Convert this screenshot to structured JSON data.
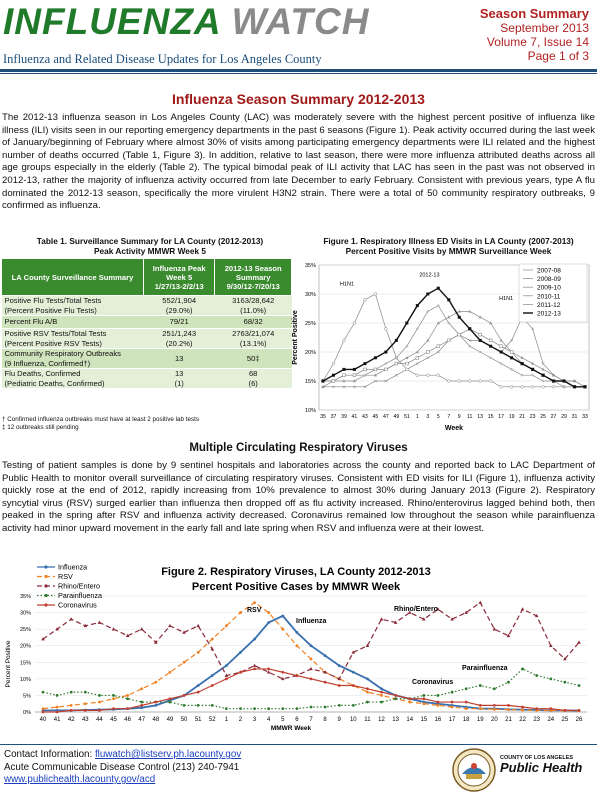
{
  "masthead": {
    "title_word1": "INFLUENZA",
    "title_word2": "WATCH",
    "subtitle": "Influenza and Related Disease Updates for Los Angeles County",
    "issue_type": "Season Summary",
    "issue_date": "September 2013",
    "issue_volume": "Volume 7, Issue 14",
    "issue_page": "Page 1 of 3"
  },
  "headline": "Influenza Season Summary 2012-2013",
  "intro_text": "The 2012-13 influenza season in Los Angeles County (LAC) was moderately severe with the highest percent positive of influenza like illness (ILI) visits seen in our reporting emergency departments in the past 6 seasons (Figure 1). Peak activity occurred during the last week of January/beginning of February where almost 30% of visits among participating emergency departments were ILI related and the highest number of deaths occurred (Table 1, Figure 3). In addition, relative to last season, there were more influenza attributed deaths across all age groups especially in the elderly (Table 2). The typical bimodal peak of ILI activity that LAC has seen in the past was not observed in 2012-13, rather the majority of influenza activity occurred from late December to early February. Consistent with previous years, type A flu dominated the 2012-13 season, specifically the more virulent H3N2 strain. There were a total of 50 community respiratory outbreaks, 9 confirmed as influenza.",
  "table1": {
    "title_l1": "Table 1. Surveillance Summary for LA County (2012-2013)",
    "title_l2": "Peak Activity MMWR Week 5",
    "headers": {
      "c1": "LA County Surveillance Summary",
      "c2a": "Influenza Peak",
      "c2b": "Week 5",
      "c2c": "1/27/13-2/2/13",
      "c3a": "2012-13 Season",
      "c3b": "Summary",
      "c3c": "9/30/12-7/20/13"
    },
    "rows": [
      {
        "l1": "Positive Flu Tests/Total Tests",
        "l2": "(Percent Positive Flu Tests)",
        "a1": "552/1,904",
        "a2": "(29.0%)",
        "b1": "3163/28,642",
        "b2": "(11.0%)"
      },
      {
        "l1": "Percent Flu A/B",
        "l2": "",
        "a1": "79/21",
        "a2": "",
        "b1": "68/32",
        "b2": ""
      },
      {
        "l1": "Positive RSV Tests/Total Tests",
        "l2": "(Percent Positive RSV Tests)",
        "a1": "251/1,243",
        "a2": "(20.2%)",
        "b1": "2763/21,074",
        "b2": "(13.1%)"
      },
      {
        "l1": "Community Respiratory Outbreaks",
        "l2": "(9 Influenza, Confirmed†)",
        "a1": "13",
        "a2": "",
        "b1": "50‡",
        "b2": ""
      },
      {
        "l1": "Flu Deaths, Confirmed",
        "l2": "(Pediatric Deaths, Confirmed)",
        "a1": "13",
        "a2": "(1)",
        "b1": "68",
        "b2": "(6)"
      }
    ],
    "footnote1": "† Confirmed influenza outbreaks must have at least 2 positive lab tests",
    "footnote2": "‡ 12 outbreaks still pending"
  },
  "chart_data": [
    {
      "type": "line",
      "title": "Figure 1. Respiratory Illness ED Visits in LA County (2007-2013)",
      "subtitle": "Percent Positive Visits by MMWR Surveillance Week",
      "xlabel": "Week",
      "ylabel": "Percent Positive",
      "x": [
        "35",
        "37",
        "39",
        "41",
        "43",
        "45",
        "47",
        "49",
        "51",
        "1",
        "3",
        "5",
        "7",
        "9",
        "11",
        "13",
        "15",
        "17",
        "19",
        "21",
        "23",
        "25",
        "27",
        "29",
        "31",
        "33"
      ],
      "ylim": [
        10,
        35
      ],
      "yticks": [
        "10%",
        "15%",
        "20%",
        "25%",
        "30%",
        "35%"
      ],
      "legend_position": "top-right",
      "annotations": [
        "H1N1",
        "2012-13",
        "H1N1"
      ],
      "series": [
        {
          "name": "2007-08",
          "color": "#888888",
          "marker": "triangle",
          "values": [
            14,
            15,
            15,
            15,
            16,
            16,
            17,
            18,
            19,
            20,
            22,
            25,
            26,
            27,
            27,
            26,
            25,
            22,
            20,
            19,
            18,
            17,
            16,
            15,
            15,
            14
          ]
        },
        {
          "name": "2008-09",
          "color": "#888888",
          "marker": "x",
          "values": [
            14,
            14,
            14,
            14,
            14,
            15,
            15,
            16,
            17,
            18,
            19,
            20,
            22,
            23,
            22,
            22,
            21,
            20,
            22,
            26,
            24,
            18,
            16,
            15,
            15,
            14
          ]
        },
        {
          "name": "2009-10",
          "color": "#888888",
          "marker": "circle",
          "values": [
            15,
            18,
            22,
            25,
            29,
            30,
            24,
            19,
            17,
            16,
            16,
            16,
            15,
            15,
            15,
            15,
            15,
            14,
            14,
            14,
            14,
            14,
            14,
            14,
            14,
            14
          ]
        },
        {
          "name": "2010-11",
          "color": "#888888",
          "marker": "diamond",
          "values": [
            15,
            15,
            16,
            16,
            16,
            17,
            18,
            19,
            21,
            24,
            27,
            28,
            25,
            23,
            21,
            20,
            19,
            18,
            17,
            16,
            16,
            15,
            15,
            14,
            14,
            14
          ]
        },
        {
          "name": "2011-12",
          "color": "#888888",
          "marker": "square-open",
          "values": [
            15,
            15,
            16,
            16,
            17,
            17,
            17,
            18,
            18,
            19,
            20,
            21,
            22,
            23,
            24,
            23,
            22,
            21,
            20,
            18,
            17,
            16,
            15,
            15,
            14,
            14
          ]
        },
        {
          "name": "2012-13",
          "color": "#111111",
          "marker": "square",
          "values": [
            15,
            16,
            17,
            17,
            18,
            19,
            20,
            22,
            25,
            28,
            30,
            31,
            29,
            26,
            24,
            22,
            21,
            20,
            19,
            18,
            17,
            16,
            15,
            15,
            14,
            14
          ]
        }
      ]
    },
    {
      "type": "line",
      "title": "Figure 2.  Respiratory Viruses, LA County 2012-2013",
      "subtitle": "Percent Positive Cases by MMWR Week",
      "xlabel": "MMWR Week",
      "ylabel": "Percent Positive",
      "x": [
        "40",
        "41",
        "42",
        "43",
        "44",
        "45",
        "46",
        "47",
        "48",
        "49",
        "50",
        "51",
        "52",
        "1",
        "2",
        "3",
        "4",
        "5",
        "6",
        "7",
        "8",
        "9",
        "10",
        "11",
        "12",
        "13",
        "14",
        "15",
        "16",
        "17",
        "18",
        "19",
        "20",
        "21",
        "22",
        "23",
        "24",
        "25",
        "26"
      ],
      "ylim": [
        0,
        35
      ],
      "yticks": [
        "0%",
        "5%",
        "10%",
        "15%",
        "20%",
        "25%",
        "30%",
        "35%"
      ],
      "legend_position": "top-left",
      "annotations": [
        "RSV",
        "Influenza",
        "Rhino/Entero",
        "Parainfluenza",
        "Coronavirus"
      ],
      "series": [
        {
          "name": "Influenza",
          "color": "#3a6fb0",
          "style": "solid",
          "values": [
            0.5,
            0.5,
            0.5,
            0.6,
            0.7,
            0.8,
            1,
            1.3,
            2,
            3.5,
            5,
            8,
            11,
            14,
            18,
            22,
            27,
            29,
            24,
            20,
            17,
            14,
            12,
            10,
            7,
            5,
            4,
            3,
            2.5,
            2,
            1.5,
            1,
            1,
            0.8,
            0.7,
            0.6,
            0.5,
            0.5,
            0.4
          ]
        },
        {
          "name": "RSV",
          "color": "#f08020",
          "style": "dash",
          "values": [
            1,
            1.5,
            2,
            2.5,
            3,
            4,
            5,
            7,
            9,
            12,
            15,
            18,
            22,
            26,
            30,
            33,
            30,
            25,
            20,
            16,
            12,
            10,
            8,
            6,
            5,
            4,
            3,
            2.5,
            2,
            1.5,
            1,
            1,
            0.8,
            0.7,
            0.6,
            0.5,
            0.5,
            0.4,
            0.4
          ]
        },
        {
          "name": "Rhino/Entero",
          "color": "#8a2a3a",
          "style": "dash",
          "values": [
            22,
            25,
            28,
            26,
            27,
            25,
            23,
            25,
            21,
            26,
            24,
            26,
            19,
            11,
            12,
            14,
            12,
            10,
            11,
            13,
            12,
            10,
            18,
            20,
            28,
            27,
            30,
            28,
            31,
            28,
            30,
            33,
            25,
            23,
            31,
            29,
            20,
            16,
            21
          ]
        },
        {
          "name": "Parainfluenza",
          "color": "#2e7a2e",
          "style": "dot",
          "values": [
            6,
            5,
            6,
            6,
            5,
            5,
            4,
            3,
            3,
            3,
            2,
            2,
            2,
            1,
            1,
            1,
            1,
            1,
            1,
            1.5,
            1.5,
            2,
            2,
            3,
            3,
            4,
            4,
            5,
            5,
            6,
            7,
            8,
            7,
            9,
            13,
            11,
            10,
            9,
            8
          ]
        },
        {
          "name": "Coronavirus",
          "color": "#c04030",
          "style": "solid",
          "values": [
            0,
            0,
            0.5,
            0.5,
            0.5,
            1,
            1,
            2,
            3,
            4,
            5,
            6,
            8,
            10,
            12,
            13,
            13,
            12,
            11,
            10,
            9,
            8,
            8,
            7,
            6,
            5,
            4,
            4,
            3,
            3,
            3,
            2,
            2,
            2,
            1.5,
            1,
            1,
            0.5,
            0.5
          ]
        }
      ]
    }
  ],
  "section2_title": "Multiple Circulating Respiratory Viruses",
  "section2_text": "Testing of patient samples is done by 9 sentinel hospitals and laboratories across the county and reported back to LAC Department of Public Health to monitor overall surveillance of circulating respiratory viruses. Consistent with ED visits for ILI (Figure 1), influenza activity quickly rose at the end of 2012, rapidly increasing from 10% prevalence to almost 30% during January 2013 (Figure 2). Respiratory syncytial virus (RSV) surged earlier than influenza then dropped off as flu activity increased. Rhino/enterovirus lagged behind both, then peaked in the spring after RSV and influenza activity decreased. Coronavirus remained low throughout the season while parainfluenza activity had minor upward movement in the early fall and late spring when RSV and influenza were at their lowest.",
  "footer": {
    "contact_label": "Contact Information:",
    "contact_email": "fluwatch@listserv.ph.lacounty.gov",
    "line2": "Acute Communicable Disease Control (213) 240-7941",
    "website": "www.publichealth.lacounty.gov/acd",
    "logo_small": "COUNTY OF LOS ANGELES",
    "logo_big": "Public Health"
  }
}
